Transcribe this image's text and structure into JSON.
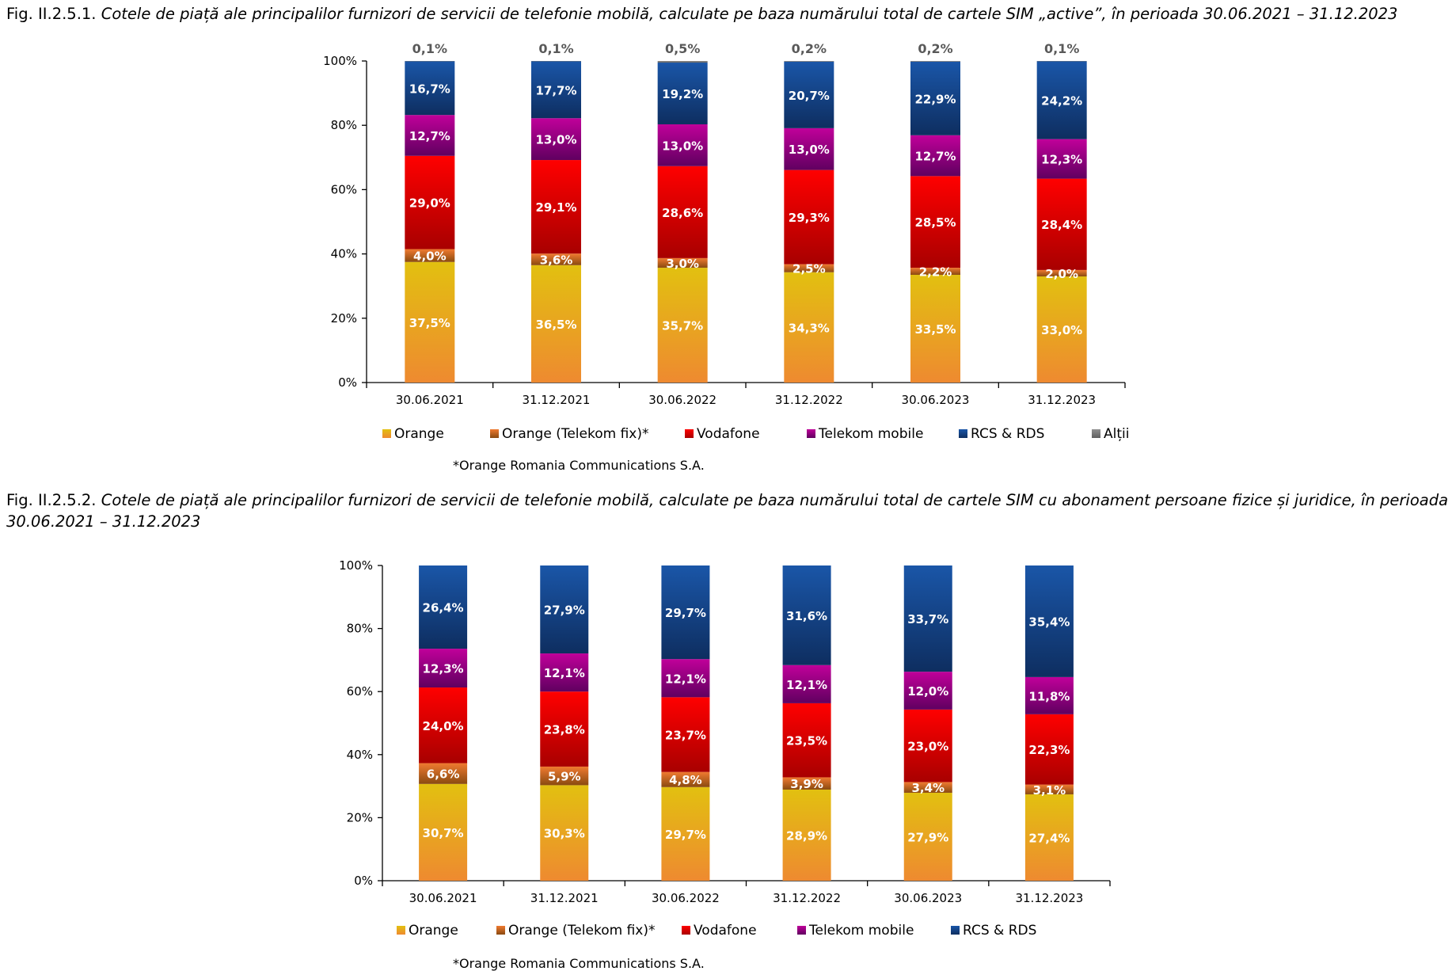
{
  "figures": [
    {
      "label": "Fig. II.2.5.1.",
      "title": "Cotele de piață ale principalilor furnizori de servicii de telefonie mobilă, calculate pe baza numărului total de cartele SIM „active”, în perioada 30.06.2021 – 31.12.2023"
    },
    {
      "label": "Fig. II.2.5.2.",
      "title": "Cotele de piață ale principalilor furnizori de servicii de telefonie mobilă, calculate pe baza numărului total de cartele SIM cu abonament persoane fizice și juridice, în perioada 30.06.2021 – 31.12.2023"
    }
  ],
  "chart_data": [
    {
      "type": "bar",
      "stacked": true,
      "normalized": true,
      "title": "Fig. II.2.5.1. Cotele de piață ale principalilor furnizori de servicii de telefonie mobilă, calculate pe baza numărului total de cartele SIM „active”, în perioada 30.06.2021 – 31.12.2023",
      "xlabel": "",
      "ylabel": "",
      "ylim": [
        0,
        100
      ],
      "yticks": [
        "0%",
        "20%",
        "40%",
        "60%",
        "80%",
        "100%"
      ],
      "grid": false,
      "legend_position": "bottom",
      "categories": [
        "30.06.2021",
        "31.12.2021",
        "30.06.2022",
        "31.12.2022",
        "30.06.2023",
        "31.12.2023"
      ],
      "series": [
        {
          "name": "Orange",
          "color": "#E8A318",
          "values": [
            37.5,
            36.5,
            35.7,
            34.3,
            33.5,
            33.0
          ],
          "labels": [
            "37,5%",
            "36,5%",
            "35,7%",
            "34,3%",
            "33,5%",
            "33,0%"
          ]
        },
        {
          "name": "Orange (Telekom fix)*",
          "color": "#C0601F",
          "values": [
            4.0,
            3.6,
            3.0,
            2.5,
            2.2,
            2.0
          ],
          "labels": [
            "4,0%",
            "3,6%",
            "3,0%",
            "2,5%",
            "2,2%",
            "2,0%"
          ]
        },
        {
          "name": "Vodafone",
          "color": "#E00000",
          "values": [
            29.0,
            29.1,
            28.6,
            29.3,
            28.5,
            28.4
          ],
          "labels": [
            "29,0%",
            "29,1%",
            "28,6%",
            "29,3%",
            "28,5%",
            "28,4%"
          ]
        },
        {
          "name": "Telekom mobile",
          "color": "#A0007A",
          "values": [
            12.7,
            13.0,
            13.0,
            13.0,
            12.7,
            12.3
          ],
          "labels": [
            "12,7%",
            "13,0%",
            "13,0%",
            "13,0%",
            "12,7%",
            "12,3%"
          ]
        },
        {
          "name": "RCS & RDS",
          "color": "#144A8C",
          "values": [
            16.7,
            17.7,
            19.2,
            20.7,
            22.9,
            24.2
          ],
          "labels": [
            "16,7%",
            "17,7%",
            "19,2%",
            "20,7%",
            "22,9%",
            "24,2%"
          ]
        },
        {
          "name": "Alții",
          "color": "#808080",
          "values": [
            0.1,
            0.1,
            0.5,
            0.2,
            0.2,
            0.1
          ],
          "labels": [
            "0,1%",
            "0,1%",
            "0,5%",
            "0,2%",
            "0,2%",
            "0,1%"
          ],
          "label_position": "above"
        }
      ],
      "note": "*Orange Romania Communications S.A."
    },
    {
      "type": "bar",
      "stacked": true,
      "normalized": true,
      "title": "Fig. II.2.5.2. Cotele de piață ale principalilor furnizori de servicii de telefonie mobilă, calculate pe baza numărului total de cartele SIM cu abonament persoane fizice și juridice, în perioada 30.06.2021 – 31.12.2023",
      "xlabel": "",
      "ylabel": "",
      "ylim": [
        0,
        100
      ],
      "yticks": [
        "0%",
        "20%",
        "40%",
        "60%",
        "80%",
        "100%"
      ],
      "grid": false,
      "legend_position": "bottom",
      "categories": [
        "30.06.2021",
        "31.12.2021",
        "30.06.2022",
        "31.12.2022",
        "30.06.2023",
        "31.12.2023"
      ],
      "series": [
        {
          "name": "Orange",
          "color": "#E8A318",
          "values": [
            30.7,
            30.3,
            29.7,
            28.9,
            27.9,
            27.4
          ],
          "labels": [
            "30,7%",
            "30,3%",
            "29,7%",
            "28,9%",
            "27,9%",
            "27,4%"
          ]
        },
        {
          "name": "Orange (Telekom fix)*",
          "color": "#C0601F",
          "values": [
            6.6,
            5.9,
            4.8,
            3.9,
            3.4,
            3.1
          ],
          "labels": [
            "6,6%",
            "5,9%",
            "4,8%",
            "3,9%",
            "3,4%",
            "3,1%"
          ]
        },
        {
          "name": "Vodafone",
          "color": "#E00000",
          "values": [
            24.0,
            23.8,
            23.7,
            23.5,
            23.0,
            22.3
          ],
          "labels": [
            "24,0%",
            "23,8%",
            "23,7%",
            "23,5%",
            "23,0%",
            "22,3%"
          ]
        },
        {
          "name": "Telekom mobile",
          "color": "#A0007A",
          "values": [
            12.3,
            12.1,
            12.1,
            12.1,
            12.0,
            11.8
          ],
          "labels": [
            "12,3%",
            "12,1%",
            "12,1%",
            "12,1%",
            "12,0%",
            "11,8%"
          ]
        },
        {
          "name": "RCS & RDS",
          "color": "#144A8C",
          "values": [
            26.4,
            27.9,
            29.7,
            31.6,
            33.7,
            35.4
          ],
          "labels": [
            "26,4%",
            "27,9%",
            "29,7%",
            "31,6%",
            "33,7%",
            "35,4%"
          ]
        }
      ],
      "note": "*Orange Romania Communications S.A."
    }
  ]
}
